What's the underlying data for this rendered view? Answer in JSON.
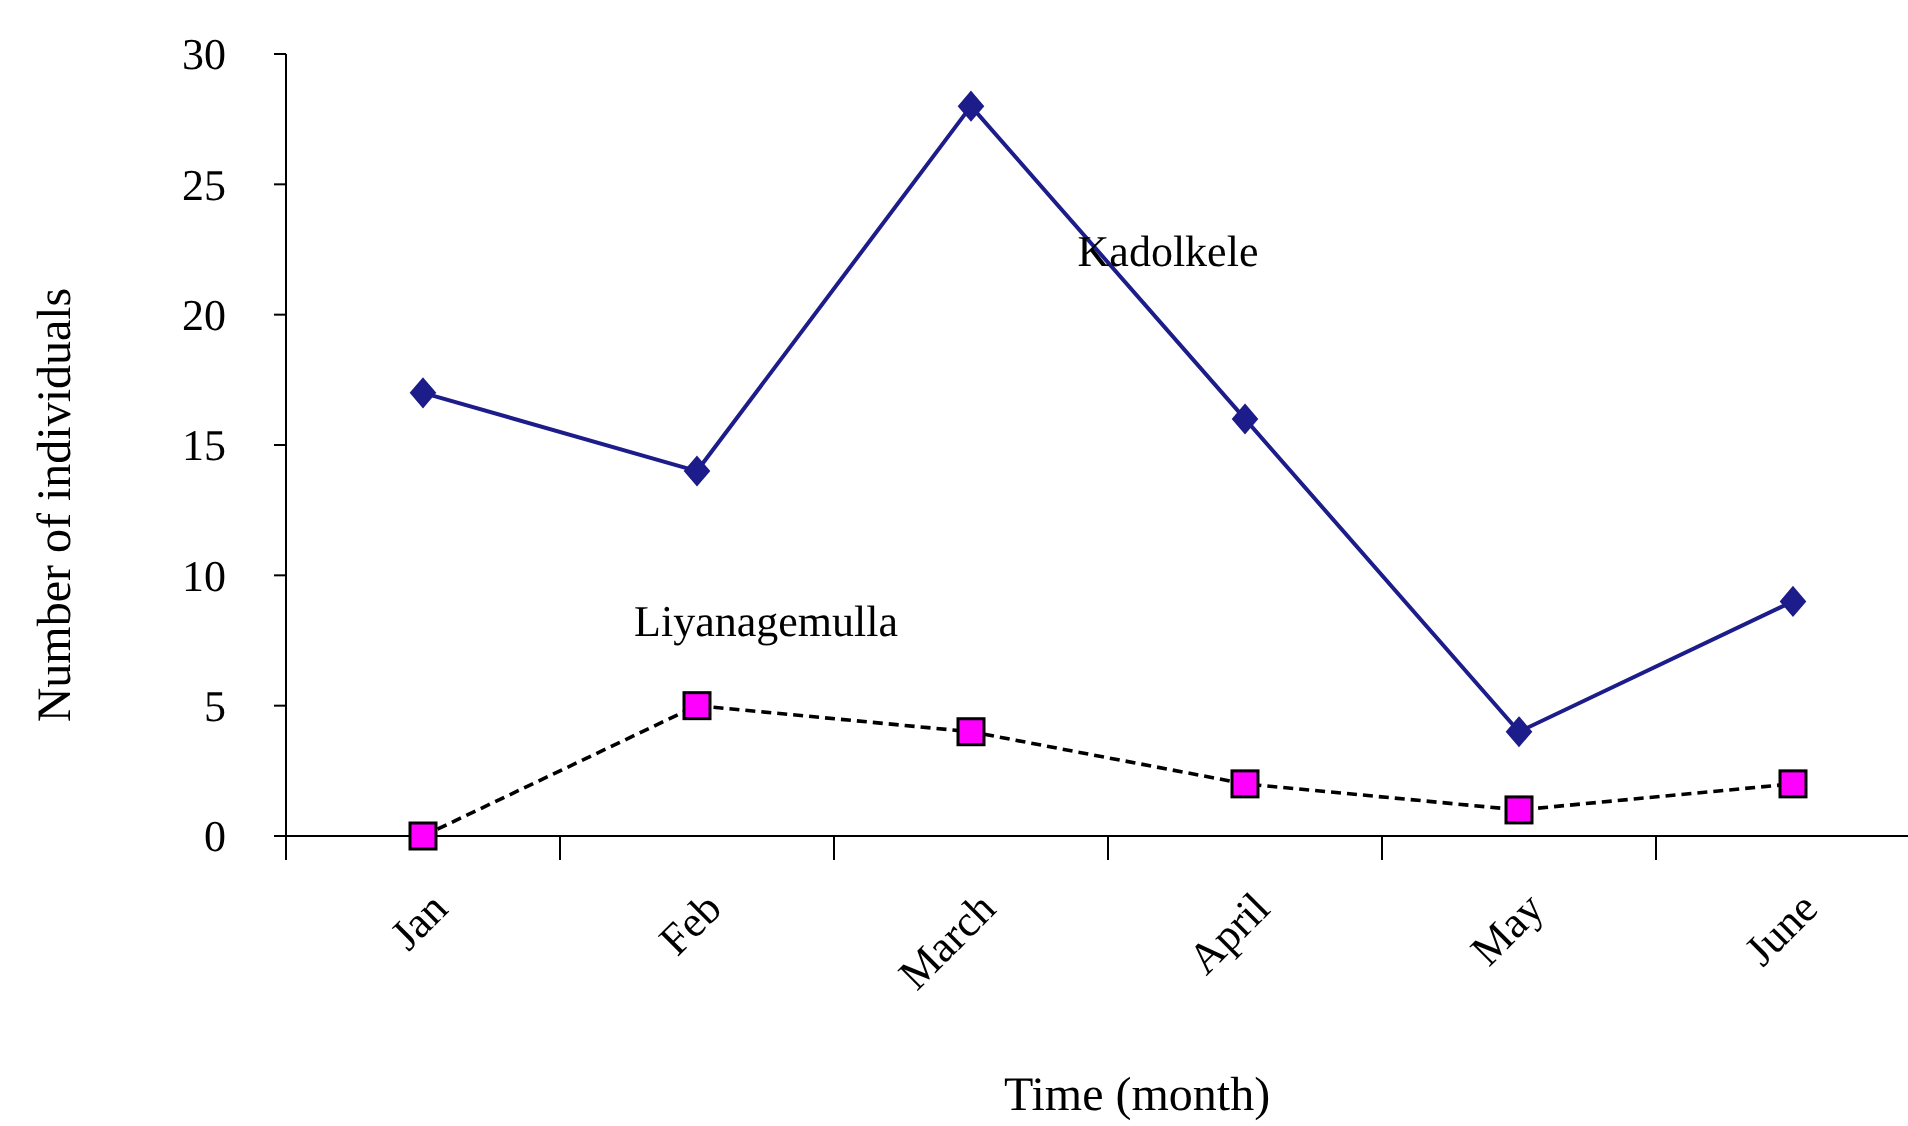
{
  "chart_data": {
    "type": "line",
    "xlabel": "Time (month)",
    "ylabel": "Number of individuals",
    "categories": [
      "Jan",
      "Feb",
      "March",
      "April",
      "May",
      "June"
    ],
    "ylim": [
      0,
      30
    ],
    "yticks": [
      0,
      5,
      10,
      15,
      20,
      25,
      30
    ],
    "grid": false,
    "series": [
      {
        "name": "Kadolkele",
        "color": "#1c1c8a",
        "values": [
          17,
          14,
          28,
          16,
          4,
          9
        ],
        "marker": "diamond",
        "line_style": "solid"
      },
      {
        "name": "Liyanagemulla",
        "color": "#ff00ff",
        "values": [
          0,
          5,
          4,
          2,
          1,
          2
        ],
        "marker": "square",
        "line_style": "dashed"
      }
    ]
  }
}
